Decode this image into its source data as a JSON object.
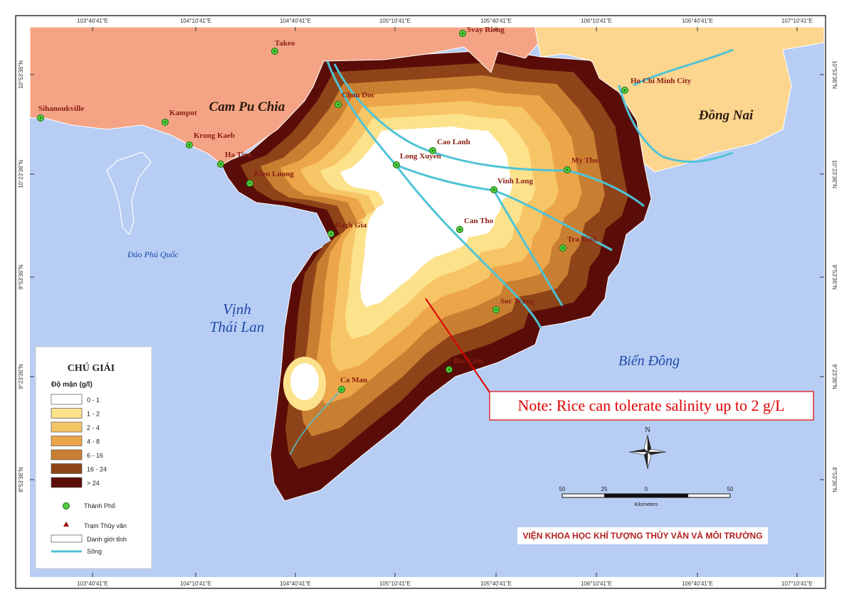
{
  "map": {
    "longitude_labels": [
      "103°40'41\"E",
      "104°10'41\"E",
      "104°40'41\"E",
      "105°10'41\"E",
      "105°40'41\"E",
      "106°10'41\"E",
      "106°40'41\"E",
      "107°10'41\"E"
    ],
    "latitude_labels": [
      "10°53'36\"N",
      "10°23'36\"N",
      "9°53'36\"N",
      "9°23'36\"N",
      "8°53'36\"N"
    ],
    "regions": [
      {
        "lines": [
          "Cam Pu Chia"
        ]
      },
      {
        "lines": [
          "Đồng Nai"
        ]
      },
      {
        "lines": [
          "Vịnh",
          "Thái Lan"
        ]
      },
      {
        "lines": [
          "Biển Đông"
        ]
      },
      {
        "lines": [
          "Đảo Phú Quốc"
        ]
      }
    ],
    "cities": [
      "Takeo",
      "Svay Rieng",
      "Sihanoukville",
      "Kampot",
      "Krong Kaeb",
      "Ha Tien",
      "Kien Luong",
      "Chau Doc",
      "Cao Lanh",
      "Long Xuyen",
      "Vinh Long",
      "My Tho",
      "Ho Chi Minh City",
      "Can Tho",
      "Tra Vinh",
      "Rach Gia",
      "Soc Trang",
      "Bac Lieu",
      "Ca Mau"
    ],
    "legend": {
      "title": "CHÚ GIẢI",
      "salinity_title": "Độ mặn (g/l)",
      "classes": [
        {
          "label": "0 - 1",
          "color": "#ffffff"
        },
        {
          "label": "1 - 2",
          "color": "#fde28c"
        },
        {
          "label": "2 - 4",
          "color": "#f6c566"
        },
        {
          "label": "4 - 8",
          "color": "#eca548"
        },
        {
          "label": "6 - 16",
          "color": "#c97f31"
        },
        {
          "label": "16 - 24",
          "color": "#8e4418"
        },
        {
          "label": "> 24",
          "color": "#5a0d08"
        }
      ],
      "symbols": [
        "Thành Phố",
        "Trạm Thủy văn",
        "Danh giới tỉnh",
        "Sông"
      ]
    },
    "note": "Note: Rice can tolerate salinity up to 2 g/L",
    "north": "N",
    "scale": {
      "ticks": [
        "50",
        "25",
        "0",
        "50"
      ],
      "unit": "Kilometers"
    },
    "credit": "VIỆN KHOA HỌC KHÍ TƯỢNG THỦY VĂN VÀ MÔI TRƯỜNG"
  }
}
